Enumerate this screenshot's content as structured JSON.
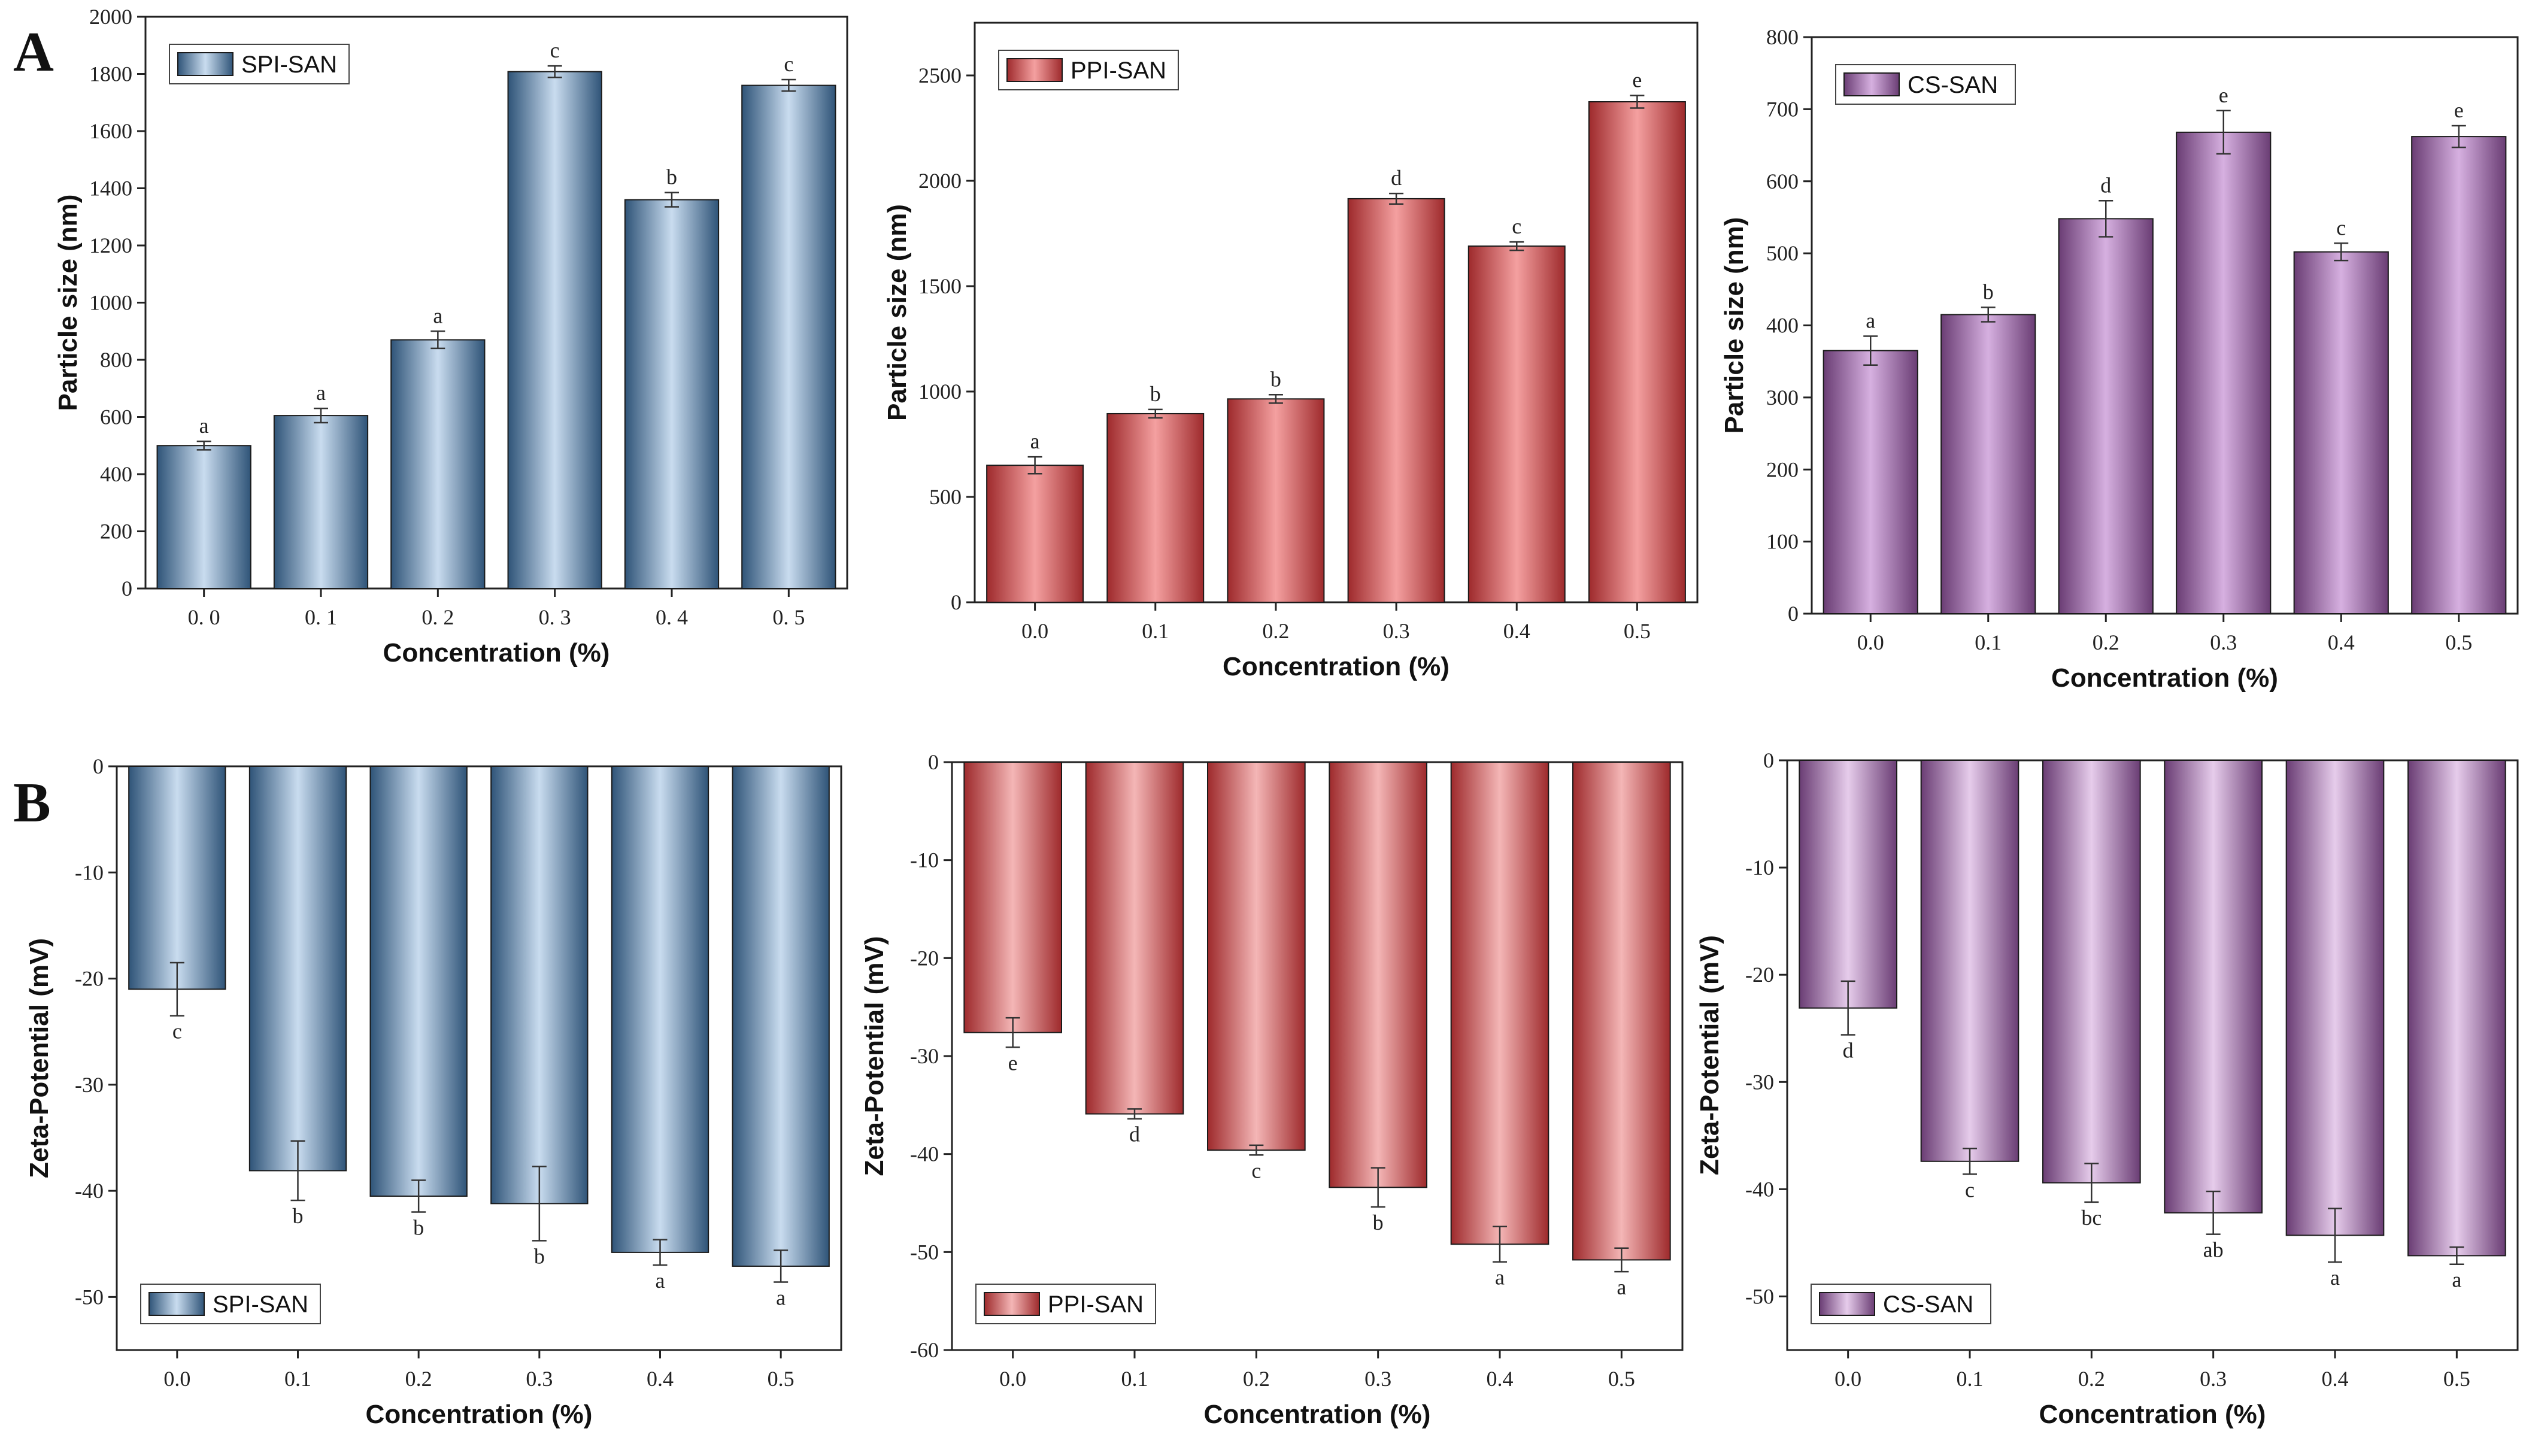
{
  "panel_labels": {
    "A": "A",
    "B": "B"
  },
  "chart_data": [
    {
      "type": "bar",
      "panel": "A",
      "title": "",
      "legend": "SPI-SAN",
      "legend_position": "top-left",
      "colors": {
        "edge": "#2f5478",
        "light": "#c9dcef"
      },
      "xlabel": "Concentration (%)",
      "ylabel": "Particle size (nm)",
      "categories": [
        "0. 0",
        "0. 1",
        "0. 2",
        "0. 3",
        "0. 4",
        "0. 5"
      ],
      "values": [
        500,
        605,
        870,
        1808,
        1360,
        1760
      ],
      "errors": [
        15,
        25,
        30,
        20,
        25,
        20
      ],
      "significance": [
        "a",
        "a",
        "a",
        "c",
        "b",
        "c"
      ],
      "ylim": [
        0,
        2000
      ],
      "yticks": [
        "0",
        "200",
        "400",
        "600",
        "800",
        "1000",
        "1200",
        "1400",
        "1600",
        "1800",
        "2000"
      ]
    },
    {
      "type": "bar",
      "panel": "A",
      "title": "",
      "legend": "PPI-SAN",
      "legend_position": "top-left",
      "colors": {
        "edge": "#9e2a2c",
        "light": "#f4a0a0"
      },
      "xlabel": "Concentration (%)",
      "ylabel": "Particle size (nm)",
      "categories": [
        "0.0",
        "0.1",
        "0.2",
        "0.3",
        "0.4",
        "0.5"
      ],
      "values": [
        650,
        895,
        965,
        1915,
        1690,
        2375
      ],
      "errors": [
        40,
        20,
        20,
        25,
        20,
        30
      ],
      "significance": [
        "a",
        "b",
        "b",
        "d",
        "c",
        "e"
      ],
      "ylim": [
        0,
        2750
      ],
      "yticks": [
        "0",
        "500",
        "1000",
        "1500",
        "2000",
        "2500"
      ]
    },
    {
      "type": "bar",
      "panel": "A",
      "title": "",
      "legend": "CS-SAN",
      "legend_position": "top-left",
      "colors": {
        "edge": "#6a3d74",
        "light": "#d6b0e0"
      },
      "xlabel": "Concentration (%)",
      "ylabel": "Particle size (nm)",
      "categories": [
        "0.0",
        "0.1",
        "0.2",
        "0.3",
        "0.4",
        "0.5"
      ],
      "values": [
        365,
        415,
        548,
        668,
        502,
        662
      ],
      "errors": [
        20,
        10,
        25,
        30,
        12,
        15
      ],
      "significance": [
        "a",
        "b",
        "d",
        "e",
        "c",
        "e"
      ],
      "ylim": [
        0,
        800
      ],
      "yticks": [
        "0",
        "100",
        "200",
        "300",
        "400",
        "500",
        "600",
        "700",
        "800"
      ]
    },
    {
      "type": "bar",
      "panel": "B",
      "title": "",
      "legend": "SPI-SAN",
      "legend_position": "bottom-left",
      "colors": {
        "edge": "#2f5478",
        "light": "#c9dcef"
      },
      "xlabel": "Concentration (%)",
      "ylabel": "Zeta-Potential (mV)",
      "categories": [
        "0.0",
        "0.1",
        "0.2",
        "0.3",
        "0.4",
        "0.5"
      ],
      "values": [
        -21.0,
        -38.1,
        -40.5,
        -41.2,
        -45.8,
        -47.1
      ],
      "errors": [
        2.5,
        2.8,
        1.5,
        3.5,
        1.2,
        1.5
      ],
      "significance": [
        "c",
        "b",
        "b",
        "b",
        "a",
        "a"
      ],
      "ylim": [
        -55,
        0
      ],
      "yticks": [
        "0",
        "-10",
        "-20",
        "-30",
        "-40",
        "-50"
      ]
    },
    {
      "type": "bar",
      "panel": "B",
      "title": "",
      "legend": "PPI-SAN",
      "legend_position": "bottom-left",
      "colors": {
        "edge": "#9e2a2c",
        "light": "#f4b6b6"
      },
      "xlabel": "Concentration (%)",
      "ylabel": "Zeta-Potential (mV)",
      "categories": [
        "0.0",
        "0.1",
        "0.2",
        "0.3",
        "0.4",
        "0.5"
      ],
      "values": [
        -27.6,
        -35.9,
        -39.6,
        -43.4,
        -49.2,
        -50.8
      ],
      "errors": [
        1.5,
        0.5,
        0.5,
        2.0,
        1.8,
        1.2
      ],
      "significance": [
        "e",
        "d",
        "c",
        "b",
        "a",
        "a"
      ],
      "ylim": [
        -60,
        0
      ],
      "yticks": [
        "0",
        "-10",
        "-20",
        "-30",
        "-40",
        "-50",
        "-60"
      ]
    },
    {
      "type": "bar",
      "panel": "B",
      "title": "",
      "legend": "CS-SAN",
      "legend_position": "bottom-left",
      "colors": {
        "edge": "#6a3d74",
        "light": "#e6cceb"
      },
      "xlabel": "Concentration (%)",
      "ylabel": "Zeta-Potential (mV)",
      "categories": [
        "0.0",
        "0.1",
        "0.2",
        "0.3",
        "0.4",
        "0.5"
      ],
      "values": [
        -23.1,
        -37.4,
        -39.4,
        -42.2,
        -44.3,
        -46.2
      ],
      "errors": [
        2.5,
        1.2,
        1.8,
        2.0,
        2.5,
        0.8
      ],
      "significance": [
        "d",
        "c",
        "bc",
        "ab",
        "a",
        "a"
      ],
      "ylim": [
        -55,
        0
      ],
      "yticks": [
        "0",
        "-10",
        "-20",
        "-30",
        "-40",
        "-50"
      ]
    }
  ]
}
